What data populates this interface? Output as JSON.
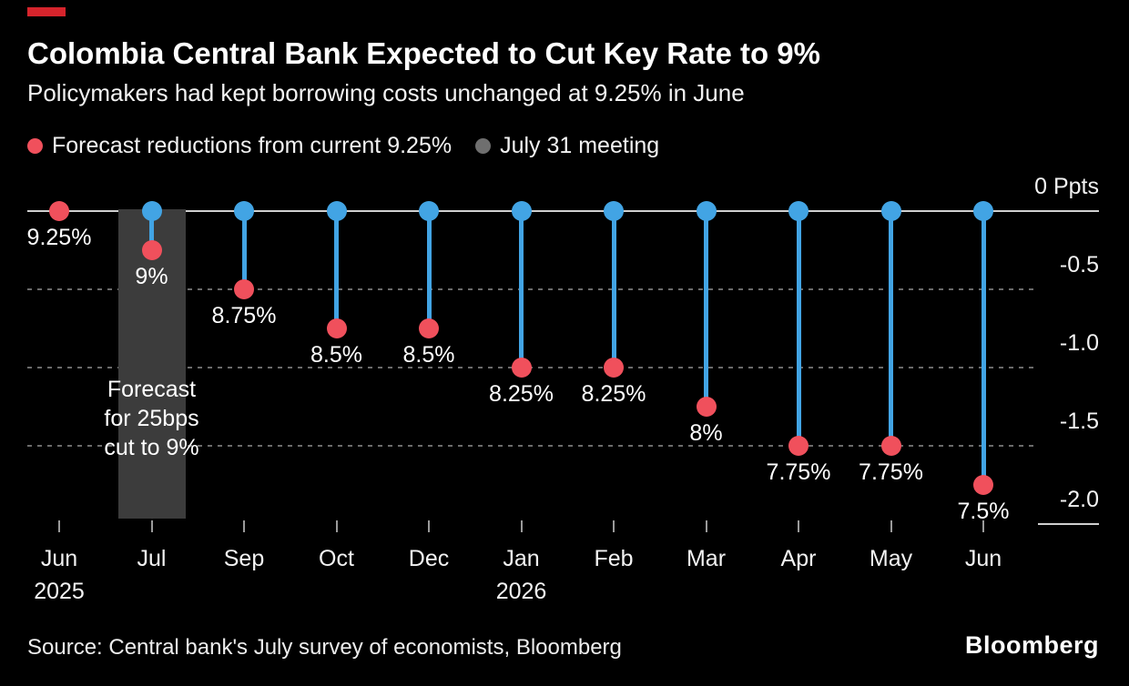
{
  "header": {
    "title": "Colombia Central Bank Expected to Cut Key Rate to 9%",
    "subtitle": "Policymakers had kept borrowing costs unchanged at 9.25% in June"
  },
  "legend": {
    "items": [
      {
        "label": "Forecast reductions from current 9.25%",
        "color": "#f0505c"
      },
      {
        "label": "July 31 meeting",
        "color": "#6f6f6f"
      }
    ]
  },
  "chart_data": {
    "type": "lollipop",
    "title": "Colombia Central Bank Expected to Cut Key Rate to 9%",
    "subtitle": "Policymakers had kept borrowing costs unchanged at 9.25% in June",
    "ylabel": "Ppts",
    "ylim": [
      -2.0,
      0
    ],
    "grid": "dashed horizontal",
    "legend_position": "top",
    "y_ticks": [
      {
        "label": "0 Ppts",
        "value": 0
      },
      {
        "label": "-0.5",
        "value": -0.5
      },
      {
        "label": "-1.0",
        "value": -1.0
      },
      {
        "label": "-1.5",
        "value": -1.5
      },
      {
        "label": "-2.0",
        "value": -2.0
      }
    ],
    "points": [
      {
        "month": "Jun",
        "year": "2025",
        "rate_label": "9.25%",
        "reduction": 0
      },
      {
        "month": "Jul",
        "rate_label": "9%",
        "reduction": -0.25,
        "highlighted": true
      },
      {
        "month": "Sep",
        "rate_label": "8.75%",
        "reduction": -0.5
      },
      {
        "month": "Oct",
        "rate_label": "8.5%",
        "reduction": -0.75
      },
      {
        "month": "Dec",
        "rate_label": "8.5%",
        "reduction": -0.75
      },
      {
        "month": "Jan",
        "year": "2026",
        "rate_label": "8.25%",
        "reduction": -1.0
      },
      {
        "month": "Feb",
        "rate_label": "8.25%",
        "reduction": -1.0
      },
      {
        "month": "Mar",
        "rate_label": "8%",
        "reduction": -1.25
      },
      {
        "month": "Apr",
        "rate_label": "7.75%",
        "reduction": -1.5
      },
      {
        "month": "May",
        "rate_label": "7.75%",
        "reduction": -1.5
      },
      {
        "month": "Jun",
        "rate_label": "7.5%",
        "reduction": -1.75
      }
    ],
    "annotation": {
      "lines": [
        "Forecast",
        "for 25bps",
        "cut to 9%"
      ],
      "target_month": "Jul"
    },
    "colors": {
      "red": "#f0505c",
      "blue": "#42a4e4",
      "gray_dot": "#6f6f6f",
      "band": "#3c3c3c",
      "grid": "#6b6b6b",
      "axis_line": "#cfcfcf",
      "tick": "#9a9a9a",
      "text": "#ffffff",
      "muted_text": "#f2f2f2",
      "background": "#000000",
      "brand_accent": "#d6242c"
    }
  },
  "footer": {
    "source": "Source: Central bank's July survey of economists, Bloomberg",
    "logo": "Bloomberg"
  }
}
